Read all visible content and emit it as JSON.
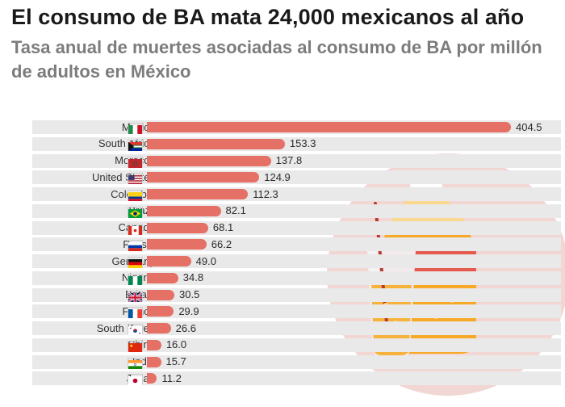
{
  "title": "El consumo de BA mata 24,000 mexicanos al año",
  "subtitle": "Tasa anual de muertes asociadas al consumo de BA por millón de adultos en México",
  "colors": {
    "bar": "#e57066",
    "row_bg": "#e9e9e9",
    "circle": "#f2d6d3",
    "title": "#1a1a1a",
    "subtitle": "#7c7c7c"
  },
  "chart_data": {
    "type": "bar",
    "orientation": "horizontal",
    "title": "El consumo de BA mata 24,000 mexicanos al año",
    "subtitle": "Tasa anual de muertes asociadas al consumo de BA por millón de adultos en México",
    "categories": [
      "Mexico",
      "South Africa",
      "Morocco",
      "United States",
      "Colombia",
      "Brazil",
      "Canada",
      "Russia",
      "Germany",
      "Nigeria",
      "Britain",
      "France",
      "South Korea",
      "China",
      "India",
      "Japan"
    ],
    "values": [
      404.5,
      153.3,
      137.8,
      124.9,
      112.3,
      82.1,
      68.1,
      66.2,
      49.0,
      34.8,
      30.5,
      29.9,
      26.6,
      16.0,
      15.7,
      11.2
    ],
    "value_labels": [
      "404.5",
      "153.3",
      "137.8",
      "124.9",
      "112.3",
      "82.1",
      "68.1",
      "66.2",
      "49.0",
      "34.8",
      "30.5",
      "29.9",
      "26.6",
      "16.0",
      "15.7",
      "11.2"
    ],
    "flags": [
      "mexico-flag-icon",
      "south-africa-flag-icon",
      "morocco-flag-icon",
      "united-states-flag-icon",
      "colombia-flag-icon",
      "brazil-flag-icon",
      "canada-flag-icon",
      "russia-flag-icon",
      "germany-flag-icon",
      "nigeria-flag-icon",
      "britain-flag-icon",
      "france-flag-icon",
      "south-korea-flag-icon",
      "china-flag-icon",
      "india-flag-icon",
      "japan-flag-icon"
    ],
    "xlim": [
      0,
      404.5
    ],
    "xlabel": "",
    "ylabel": "",
    "grid": false,
    "legend": "none"
  },
  "illustration": {
    "icon": "soda-bottle-and-glass-icon"
  }
}
